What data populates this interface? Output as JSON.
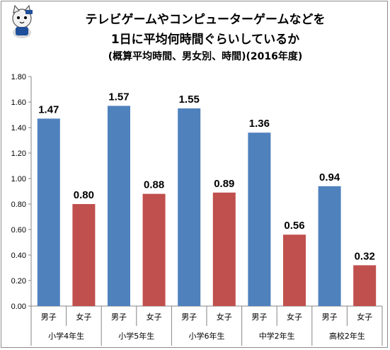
{
  "chart_data": {
    "type": "bar",
    "title_lines": [
      "テレビゲームやコンピューターゲームなどを",
      "1日に平均何時間ぐらいしているか"
    ],
    "subtitle": "(概算平均時間、男女別、時間)(2016年度)",
    "groups": [
      "小学4年生",
      "小学5年生",
      "小学6年生",
      "中学2年生",
      "高校2年生"
    ],
    "categories": [
      "男子",
      "女子",
      "男子",
      "女子",
      "男子",
      "女子",
      "男子",
      "女子",
      "男子",
      "女子"
    ],
    "values": [
      1.47,
      0.8,
      1.57,
      0.88,
      1.55,
      0.89,
      1.36,
      0.56,
      0.94,
      0.32
    ],
    "value_labels": [
      "1.47",
      "0.80",
      "1.57",
      "0.88",
      "1.55",
      "0.89",
      "1.36",
      "0.56",
      "0.94",
      "0.32"
    ],
    "ylim": [
      0,
      1.8
    ],
    "yticks": [
      "0.00",
      "0.20",
      "0.40",
      "0.60",
      "0.80",
      "1.00",
      "1.20",
      "1.40",
      "1.60",
      "1.80"
    ],
    "grid": false,
    "legend": "none",
    "colors": {
      "男子": "#4f81bd",
      "女子": "#c0504d",
      "axis": "#868686"
    }
  },
  "mascot": {
    "icon": "cat-mascot-icon"
  }
}
